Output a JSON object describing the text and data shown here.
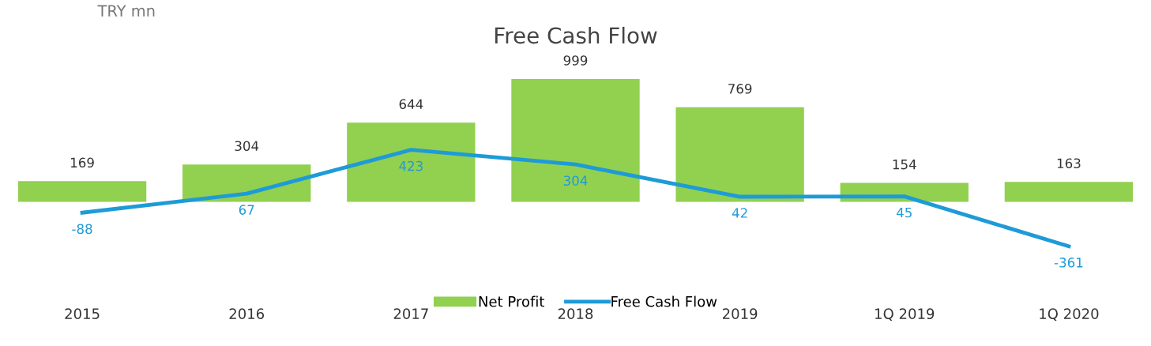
{
  "chart_data": {
    "type": "bar",
    "title": "Free Cash Flow",
    "annotations": [
      "TRY mn"
    ],
    "categories": [
      "2015",
      "2016",
      "2017",
      "2018",
      "2019",
      "1Q 2019",
      "1Q 2020"
    ],
    "series": [
      {
        "name": "Net Profit",
        "color": "#92d050",
        "values": [
          169,
          304,
          644,
          999,
          769,
          154,
          163
        ]
      },
      {
        "name": "Free Cash Flow",
        "type": "line",
        "color": "#1e9bd7",
        "values": [
          -88,
          67,
          423,
          304,
          42,
          45,
          -361
        ]
      }
    ],
    "tick_labels": "x",
    "data_labels": true,
    "legend": "bottom",
    "marker": "none",
    "line_style": "solid",
    "grid": false
  }
}
